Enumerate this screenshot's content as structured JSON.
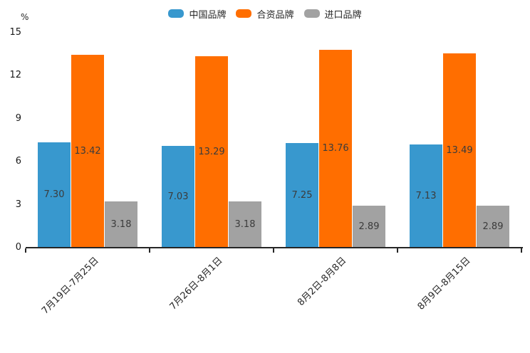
{
  "chart_data": {
    "type": "bar",
    "categories": [
      "7月19日-7月25日",
      "7月26日-8月1日",
      "8月2日-8月8日",
      "8月9日-8月15日"
    ],
    "series": [
      {
        "name": "中国品牌",
        "color": "#3898CE",
        "values": [
          7.3,
          7.03,
          7.25,
          7.13
        ]
      },
      {
        "name": "合资品牌",
        "color": "#FF6E00",
        "values": [
          13.42,
          13.29,
          13.76,
          13.49
        ]
      },
      {
        "name": "进口品牌",
        "color": "#A2A2A2",
        "values": [
          3.18,
          3.18,
          2.89,
          2.89
        ]
      }
    ],
    "title": "",
    "xlabel": "",
    "ylabel_unit": "%",
    "y_ticks": [
      0,
      3,
      6,
      9,
      12,
      15
    ],
    "ylim": [
      0,
      15
    ],
    "grid": false,
    "legend_position": "top",
    "value_labels": true,
    "value_label_decimals": 2,
    "colors": {
      "axis_line": "#262626",
      "tick_text": "#1a1a1a",
      "value_text": "#3b3b3b",
      "background": "#ffffff"
    }
  }
}
